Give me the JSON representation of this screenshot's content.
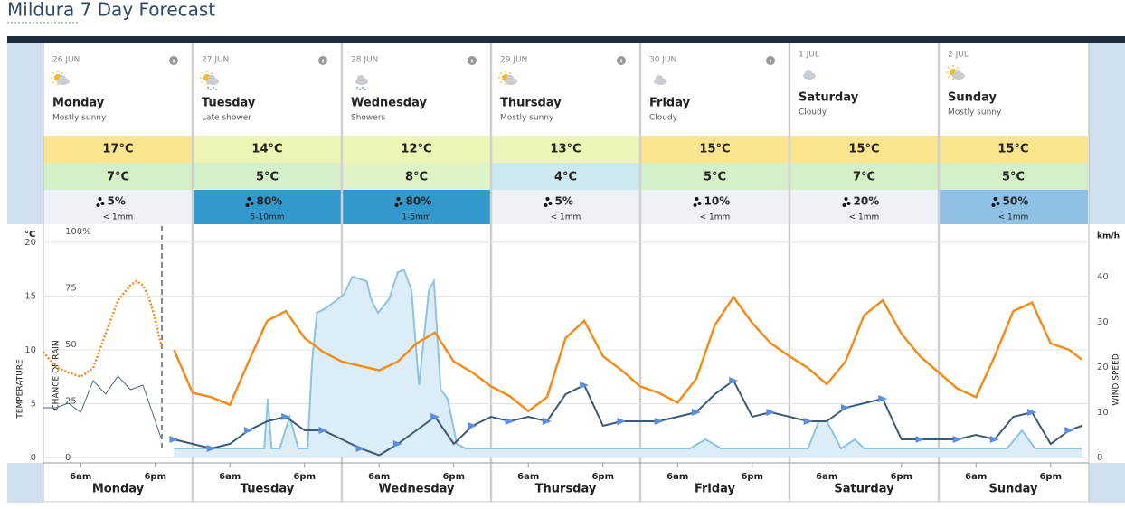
{
  "title": "Mildura 7 Day Forecast",
  "days": [
    {
      "date": "26 JUN",
      "name": "Monday",
      "summary": "Mostly sunny",
      "icon": "sun-cloud",
      "max": "17°C",
      "max_color": "#fbe68f",
      "min": "7°C",
      "min_color": "#d5efc8",
      "rain_chance": "5%",
      "rain_amount": "< 1mm",
      "rain_color": "#eef2f6"
    },
    {
      "date": "27 JUN",
      "name": "Tuesday",
      "summary": "Late shower",
      "icon": "sun-rain",
      "max": "14°C",
      "max_color": "#eef3b6",
      "min": "5°C",
      "min_color": "#d5efc8",
      "rain_chance": "80%",
      "rain_amount": "5-10mm",
      "rain_color": "#3399cc"
    },
    {
      "date": "28 JUN",
      "name": "Wednesday",
      "summary": "Showers",
      "icon": "rain",
      "max": "12°C",
      "max_color": "#eef3b6",
      "min": "8°C",
      "min_color": "#def3c6",
      "rain_chance": "80%",
      "rain_amount": "1-5mm",
      "rain_color": "#3399cc"
    },
    {
      "date": "29 JUN",
      "name": "Thursday",
      "summary": "Mostly sunny",
      "icon": "sun-cloud",
      "max": "13°C",
      "max_color": "#eef3b6",
      "min": "4°C",
      "min_color": "#cde9f0",
      "rain_chance": "5%",
      "rain_amount": "< 1mm",
      "rain_color": "#eef2f6"
    },
    {
      "date": "30 JUN",
      "name": "Friday",
      "summary": "Cloudy",
      "icon": "cloud",
      "max": "15°C",
      "max_color": "#fbe68f",
      "min": "5°C",
      "min_color": "#d5efc8",
      "rain_chance": "10%",
      "rain_amount": "< 1mm",
      "rain_color": "#eef2f6"
    },
    {
      "date": "1 JUL",
      "name": "Saturday",
      "summary": "Cloudy",
      "icon": "cloud",
      "max": "15°C",
      "max_color": "#fbe68f",
      "min": "7°C",
      "min_color": "#d5efc8",
      "rain_chance": "20%",
      "rain_amount": "< 1mm",
      "rain_color": "#eef2f6"
    },
    {
      "date": "2 JUL",
      "name": "Sunday",
      "summary": "Mostly sunny",
      "icon": "sun-cloud",
      "max": "15°C",
      "max_color": "#fbe68f",
      "min": "5°C",
      "min_color": "#d5efc8",
      "rain_chance": "50%",
      "rain_amount": "< 1mm",
      "rain_color": "#8ec1e4"
    }
  ],
  "chart": {
    "xlim": [
      0,
      168
    ],
    "xticks": [
      {
        "value": 6,
        "label": "6am"
      },
      {
        "value": 18,
        "label": "6pm"
      },
      {
        "value": 30,
        "label": "6am"
      },
      {
        "value": 42,
        "label": "6pm"
      },
      {
        "value": 54,
        "label": "6am"
      },
      {
        "value": 66,
        "label": "6pm"
      },
      {
        "value": 78,
        "label": "6am"
      },
      {
        "value": 90,
        "label": "6pm"
      },
      {
        "value": 102,
        "label": "6am"
      },
      {
        "value": 114,
        "label": "6pm"
      },
      {
        "value": 126,
        "label": "6am"
      },
      {
        "value": 138,
        "label": "6pm"
      },
      {
        "value": 150,
        "label": "6am"
      },
      {
        "value": 162,
        "label": "6pm"
      }
    ],
    "temp_axis": {
      "unit": "°C",
      "title": "TEMPERATURE",
      "ylim": [
        0,
        21
      ],
      "yticks": [
        0,
        5,
        10,
        15,
        20
      ],
      "grid": true
    },
    "rain_axis": {
      "title": "CHANCE OF RAIN",
      "ylim": [
        0,
        100
      ],
      "yticks": [
        0,
        25,
        50,
        75,
        {
          "value": 100,
          "label": "100%"
        }
      ]
    },
    "wind_axis": {
      "unit": "km/h",
      "title": "WIND SPEED",
      "ylim": [
        0,
        50
      ],
      "yticks": [
        0,
        10,
        20,
        30,
        40
      ]
    },
    "temperature_observed": {
      "color": "#f28c1a",
      "style": "dotted",
      "x": [
        0,
        2,
        4,
        6,
        8,
        10,
        12,
        14,
        15,
        16,
        17,
        18,
        19
      ],
      "values": [
        9.8,
        8.4,
        7.9,
        7.5,
        8.3,
        11.5,
        14.6,
        16.0,
        16.4,
        16.0,
        14.8,
        12.8,
        10.3
      ]
    },
    "temperature": {
      "color": "#f28c1a",
      "style": "solid",
      "x": [
        21,
        24,
        27,
        30,
        33,
        36,
        39,
        42,
        45,
        48,
        51,
        54,
        57,
        60,
        63,
        66,
        69,
        72,
        75,
        78,
        81,
        84,
        87,
        90,
        93,
        96,
        99,
        102,
        105,
        108,
        111,
        114,
        117,
        120,
        123,
        126,
        129,
        132,
        135,
        138,
        141,
        144,
        147,
        150,
        153,
        156,
        159,
        162,
        165,
        167
      ],
      "values": [
        10,
        6.0,
        5.6,
        4.9,
        8.9,
        12.7,
        13.6,
        11.1,
        9.8,
        8.9,
        8.5,
        8.1,
        8.9,
        10.6,
        11.6,
        8.9,
        7.9,
        6.6,
        5.7,
        4.3,
        5.6,
        11.1,
        12.7,
        9.4,
        8.1,
        6.6,
        6.0,
        5.1,
        7.3,
        12.3,
        14.9,
        12.5,
        10.6,
        9.4,
        8.3,
        6.8,
        8.9,
        13.2,
        14.6,
        11.5,
        9.4,
        7.9,
        6.4,
        5.6,
        9.4,
        13.6,
        14.4,
        10.6,
        10.0,
        9.1
      ]
    },
    "rain_chance": {
      "color": "#8cc4e0",
      "fill": "#dcedf8",
      "x": [
        21,
        33,
        35.5,
        36.1,
        36.7,
        38,
        39.6,
        41,
        42.5,
        43.2,
        44,
        45.4,
        48.3,
        49.7,
        52,
        52.7,
        53.8,
        55.6,
        57,
        58,
        59.2,
        60.4,
        62,
        62.8,
        63.9,
        65,
        66.5,
        67.9,
        104,
        106.5,
        109,
        123,
        124.7,
        126,
        128.3,
        130.5,
        132,
        155,
        157.4,
        159.5,
        167
      ],
      "values": [
        4,
        4,
        4,
        26,
        4,
        4,
        18,
        4,
        4,
        42,
        64,
        66,
        72,
        80,
        78,
        70,
        64,
        70,
        82,
        83,
        74,
        32,
        74,
        78,
        30,
        26,
        6,
        4,
        4,
        8,
        4,
        4,
        16,
        16,
        4,
        8,
        4,
        4,
        12,
        4,
        4
      ]
    },
    "wind_observed": {
      "color": "#4a6378",
      "x": [
        0,
        2,
        4,
        6,
        8,
        10,
        12,
        14,
        16,
        18,
        19
      ],
      "values": [
        11,
        11,
        12,
        10,
        17,
        14,
        18,
        15,
        16,
        8,
        4
      ]
    },
    "wind": {
      "color": "#3d5a73",
      "arrow_color": "#5b8ee0",
      "x": [
        21,
        24,
        27,
        30,
        33,
        36,
        39,
        42,
        45,
        48,
        51,
        54,
        57,
        60,
        63,
        66,
        69,
        72,
        75,
        78,
        81,
        84,
        87,
        90,
        93,
        96,
        99,
        102,
        105,
        108,
        111,
        114,
        117,
        120,
        123,
        126,
        129,
        132,
        135,
        138,
        141,
        144,
        147,
        150,
        153,
        156,
        159,
        162,
        165,
        167
      ],
      "values": [
        4,
        3,
        2,
        3,
        6,
        8,
        9,
        6,
        6,
        4,
        2,
        0.5,
        3,
        6,
        9,
        3,
        7,
        9,
        8,
        9,
        8,
        14,
        16,
        7,
        8,
        8,
        8,
        9,
        10,
        14,
        17,
        9,
        10,
        9,
        8,
        8,
        11,
        12,
        13,
        4,
        4,
        4,
        4,
        5,
        4,
        9,
        10,
        3,
        6,
        7
      ]
    }
  }
}
